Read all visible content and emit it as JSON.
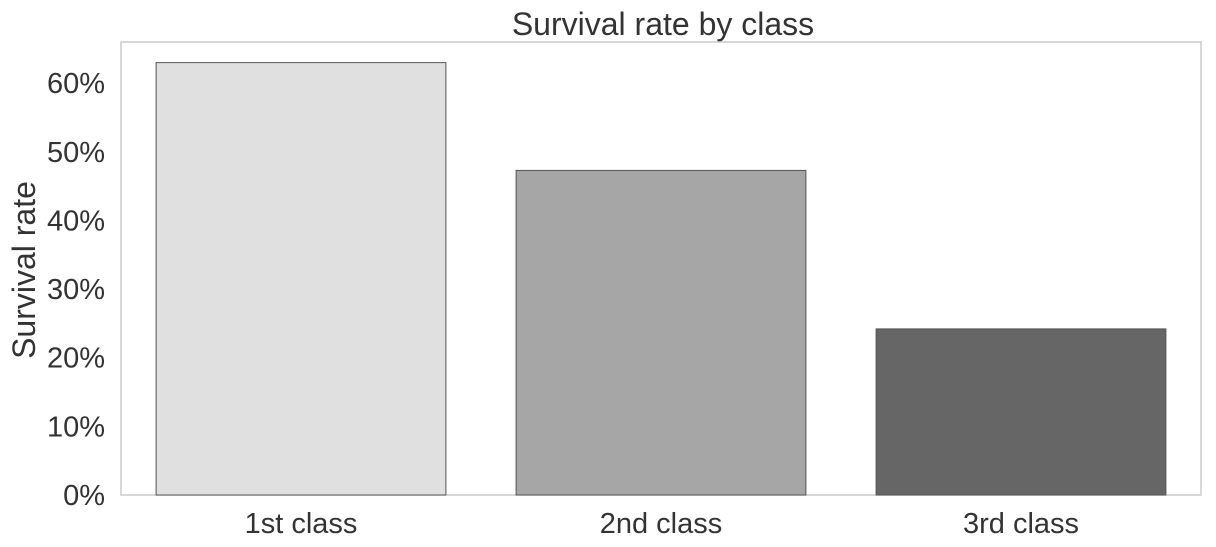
{
  "chart_data": {
    "type": "bar",
    "title": "Survival rate by class",
    "xlabel": "",
    "ylabel": "Survival rate",
    "categories": [
      "1st class",
      "2nd class",
      "3rd class"
    ],
    "values": [
      0.63,
      0.473,
      0.242
    ],
    "bar_colors": [
      "#e0e0e0",
      "#a6a6a6",
      "#666666"
    ],
    "ylim": [
      0,
      0.66
    ],
    "yticks": [
      0,
      0.1,
      0.2,
      0.3,
      0.4,
      0.5,
      0.6
    ],
    "ytick_labels": [
      "0%",
      "10%",
      "20%",
      "30%",
      "40%",
      "50%",
      "60%"
    ],
    "grid": false,
    "legend": "none"
  }
}
